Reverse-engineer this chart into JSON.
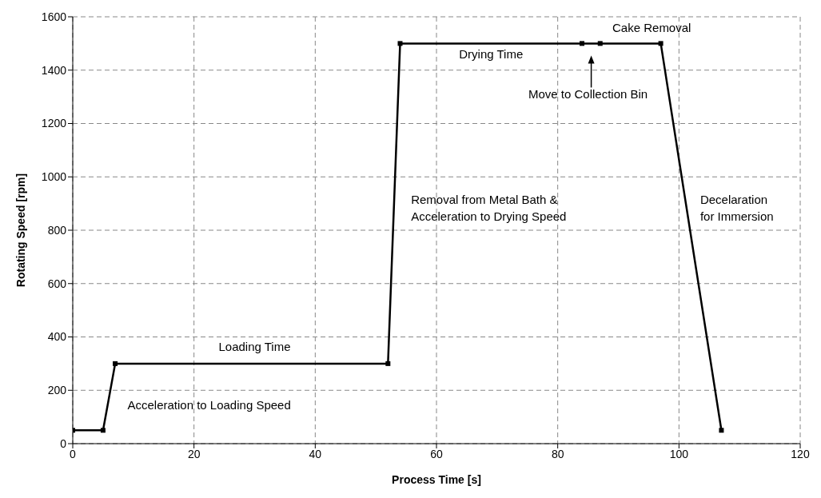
{
  "chart_data": {
    "type": "line",
    "xlabel": "Process Time [s]",
    "ylabel": "Rotating Speed [rpm]",
    "x": [
      0,
      5,
      7,
      52,
      54,
      84,
      87,
      97,
      107
    ],
    "series": [
      {
        "color": "#000000",
        "values": [
          50,
          50,
          300,
          300,
          1500,
          1500,
          1500,
          1500,
          50
        ]
      }
    ],
    "xlim": [
      0,
      120
    ],
    "xticks": [
      0,
      20,
      40,
      60,
      80,
      100,
      120
    ],
    "ylim": [
      0,
      1600
    ],
    "yticks": [
      0,
      200,
      400,
      600,
      800,
      1000,
      1200,
      1400,
      1600
    ],
    "grid": true,
    "marker": "square",
    "line_style": "solid",
    "annotations": [
      "Acceleration to Loading Speed",
      "Loading Time",
      "Removal from Metal Bath &\nAcceleration to Drying Speed",
      "Drying Time",
      "Move to Collection Bin",
      "Cake Removal",
      "Decelaration\nfor Immersion"
    ]
  }
}
